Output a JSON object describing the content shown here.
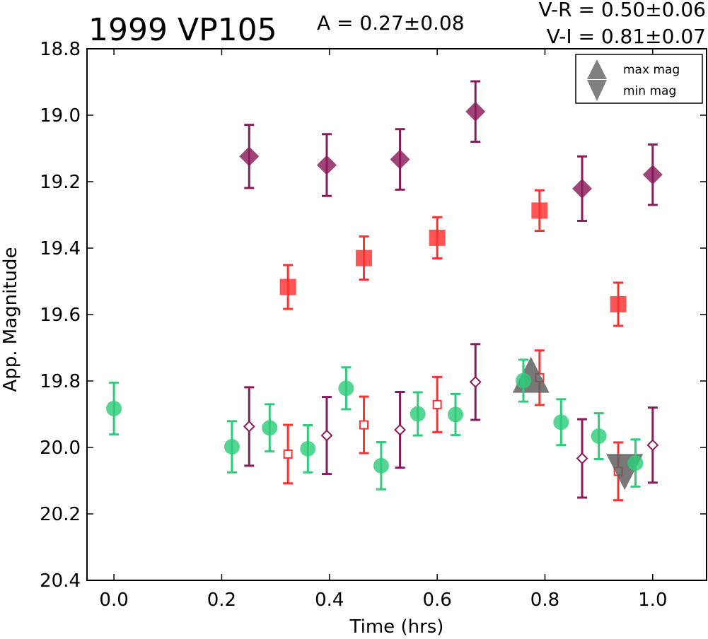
{
  "chart_data": {
    "type": "scatter",
    "title": "1999 VP105",
    "annotations": {
      "amplitude": "A  = 0.27±0.08",
      "color_vr": "V-R = 0.50±0.06",
      "color_vi": "V-I  = 0.81±0.07"
    },
    "xlabel": "Time (hrs)",
    "ylabel": "App. Magnitude",
    "xlim": [
      -0.05,
      1.1
    ],
    "ylim": [
      20.4,
      18.8
    ],
    "y_inverted": true,
    "xticks": [
      "0.0",
      "0.2",
      "0.4",
      "0.6",
      "0.8",
      "1.0"
    ],
    "xtick_values": [
      0.0,
      0.2,
      0.4,
      0.6,
      0.8,
      1.0
    ],
    "yticks": [
      "18.8",
      "19.0",
      "19.2",
      "19.4",
      "19.6",
      "19.8",
      "20.0",
      "20.2",
      "20.4"
    ],
    "ytick_values": [
      18.8,
      19.0,
      19.2,
      19.4,
      19.6,
      19.8,
      20.0,
      20.2,
      20.4
    ],
    "grid": false,
    "legend_position": "top-right",
    "legend": [
      {
        "label": "max mag",
        "marker": "triangle-up"
      },
      {
        "label": "min mag",
        "marker": "triangle-down"
      }
    ],
    "series": [
      {
        "marker": "circle",
        "fill": "filled",
        "color": "#2ecc7a",
        "points": [
          {
            "x": 0.0,
            "y": 19.883,
            "err": 0.078
          },
          {
            "x": 0.219,
            "y": 19.998,
            "err": 0.077
          },
          {
            "x": 0.289,
            "y": 19.941,
            "err": 0.071
          },
          {
            "x": 0.36,
            "y": 20.004,
            "err": 0.071
          },
          {
            "x": 0.431,
            "y": 19.822,
            "err": 0.063
          },
          {
            "x": 0.496,
            "y": 20.055,
            "err": 0.071
          },
          {
            "x": 0.564,
            "y": 19.899,
            "err": 0.065
          },
          {
            "x": 0.634,
            "y": 19.901,
            "err": 0.062
          },
          {
            "x": 0.76,
            "y": 19.799,
            "err": 0.063
          },
          {
            "x": 0.83,
            "y": 19.924,
            "err": 0.069
          },
          {
            "x": 0.9,
            "y": 19.966,
            "err": 0.069
          },
          {
            "x": 0.968,
            "y": 20.047,
            "err": 0.071
          }
        ]
      },
      {
        "marker": "square",
        "fill": "filled",
        "color": "#ff3030",
        "points": [
          {
            "x": 0.323,
            "y": 19.517,
            "err": 0.066
          },
          {
            "x": 0.464,
            "y": 19.43,
            "err": 0.065
          },
          {
            "x": 0.6,
            "y": 19.369,
            "err": 0.062
          },
          {
            "x": 0.79,
            "y": 19.287,
            "err": 0.061
          },
          {
            "x": 0.936,
            "y": 19.569,
            "err": 0.065
          }
        ]
      },
      {
        "marker": "diamond",
        "fill": "filled",
        "color": "#8b1a5a",
        "points": [
          {
            "x": 0.251,
            "y": 19.124,
            "err": 0.095
          },
          {
            "x": 0.395,
            "y": 19.15,
            "err": 0.093
          },
          {
            "x": 0.531,
            "y": 19.133,
            "err": 0.091
          },
          {
            "x": 0.671,
            "y": 18.989,
            "err": 0.091
          },
          {
            "x": 0.869,
            "y": 19.221,
            "err": 0.097
          },
          {
            "x": 1.0,
            "y": 19.179,
            "err": 0.091
          }
        ]
      },
      {
        "marker": "square",
        "fill": "open",
        "color": "#ff3030",
        "points": [
          {
            "x": 0.323,
            "y": 20.02,
            "err": 0.088
          },
          {
            "x": 0.464,
            "y": 19.932,
            "err": 0.085
          },
          {
            "x": 0.6,
            "y": 19.871,
            "err": 0.083
          },
          {
            "x": 0.79,
            "y": 19.79,
            "err": 0.082
          },
          {
            "x": 0.936,
            "y": 20.072,
            "err": 0.087
          }
        ]
      },
      {
        "marker": "diamond",
        "fill": "open",
        "color": "#8b1a5a",
        "points": [
          {
            "x": 0.251,
            "y": 19.937,
            "err": 0.118
          },
          {
            "x": 0.395,
            "y": 19.964,
            "err": 0.116
          },
          {
            "x": 0.531,
            "y": 19.947,
            "err": 0.114
          },
          {
            "x": 0.671,
            "y": 19.803,
            "err": 0.114
          },
          {
            "x": 0.869,
            "y": 20.033,
            "err": 0.118
          },
          {
            "x": 1.0,
            "y": 19.993,
            "err": 0.113
          }
        ]
      },
      {
        "marker": "triangle-up",
        "fill": "filled",
        "color": "#606060",
        "points": [
          {
            "x": 0.774,
            "y": 19.795
          }
        ]
      },
      {
        "marker": "triangle-down",
        "fill": "filled",
        "color": "#606060",
        "points": [
          {
            "x": 0.948,
            "y": 20.06
          }
        ]
      }
    ]
  }
}
